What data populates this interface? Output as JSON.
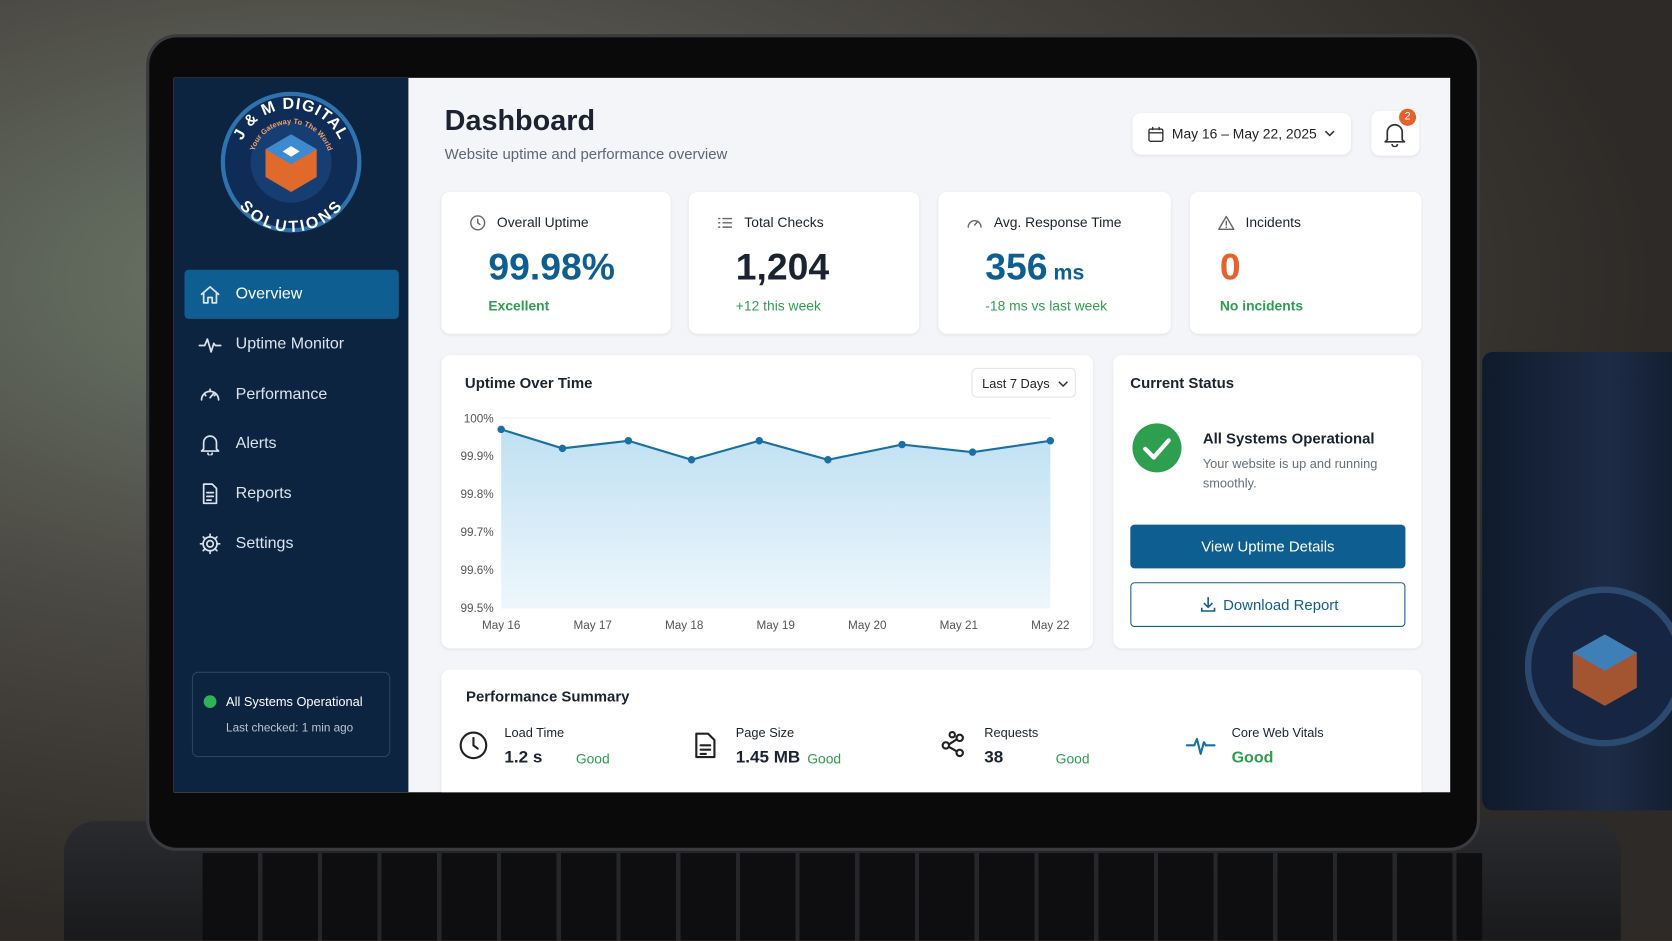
{
  "brand": {
    "name": "J & M DIGITAL",
    "tagline": "Your Gateway To The World",
    "suffix": "SOLUTIONS"
  },
  "nav": {
    "items": [
      "Overview",
      "Uptime Monitor",
      "Performance",
      "Alerts",
      "Reports",
      "Settings"
    ],
    "active": 0
  },
  "system_status": {
    "title": "All Systems Operational",
    "checked": "Last checked: 1 min ago"
  },
  "header": {
    "title": "Dashboard",
    "subtitle": "Website uptime and performance overview",
    "date_range": "May 16 – May 22, 2025",
    "notifications": "2"
  },
  "kpis": [
    {
      "label": "Overall Uptime",
      "value": "99.98%",
      "note": "Excellent"
    },
    {
      "label": "Total Checks",
      "value": "1,204",
      "note": "+12 this week"
    },
    {
      "label": "Avg. Response Time",
      "value": "356",
      "unit": "ms",
      "note": "-18 ms vs last week"
    },
    {
      "label": "Incidents",
      "value": "0",
      "note": "No incidents"
    }
  ],
  "chart_data": {
    "type": "line",
    "title": "Uptime Over Time",
    "range_selector": "Last 7 Days",
    "x": [
      0,
      0.67,
      1.39,
      2.08,
      2.82,
      3.57,
      4.38,
      5.15,
      6
    ],
    "series": [
      {
        "name": "Uptime",
        "color": "#1a6fa3",
        "values": [
          99.97,
          99.92,
          99.94,
          99.89,
          99.94,
          99.89,
          99.93,
          99.91,
          99.94
        ]
      }
    ],
    "xlim": [
      0,
      6
    ],
    "xticks": [
      {
        "value": 0,
        "label": "May 16"
      },
      {
        "value": 1,
        "label": "May 17"
      },
      {
        "value": 2,
        "label": "May 18"
      },
      {
        "value": 3,
        "label": "May 19"
      },
      {
        "value": 4,
        "label": "May 20"
      },
      {
        "value": 5,
        "label": "May 21"
      },
      {
        "value": 6,
        "label": "May 22"
      }
    ],
    "ylim": [
      99.5,
      100
    ],
    "yticks": [
      {
        "value": 99.5,
        "label": "99.5%"
      },
      {
        "value": 99.6,
        "label": "99.6%"
      },
      {
        "value": 99.7,
        "label": "99.7%"
      },
      {
        "value": 99.8,
        "label": "99.8%"
      },
      {
        "value": 99.9,
        "label": "99.9%"
      },
      {
        "value": 100,
        "label": "100%"
      }
    ],
    "grid": true
  },
  "current_status": {
    "title": "Current Status",
    "headline": "All Systems Operational",
    "text": "Your website is up and running smoothly.",
    "primary_button": "View Uptime Details",
    "secondary_button": "Download Report"
  },
  "performance_summary": {
    "title": "Performance Summary",
    "items": [
      {
        "label": "Load Time",
        "value": "1.2 s",
        "rating": "Good"
      },
      {
        "label": "Page Size",
        "value": "1.45 MB",
        "rating": "Good"
      },
      {
        "label": "Requests",
        "value": "38",
        "rating": "Good"
      },
      {
        "label": "Core Web Vitals",
        "value": "Good"
      }
    ]
  }
}
